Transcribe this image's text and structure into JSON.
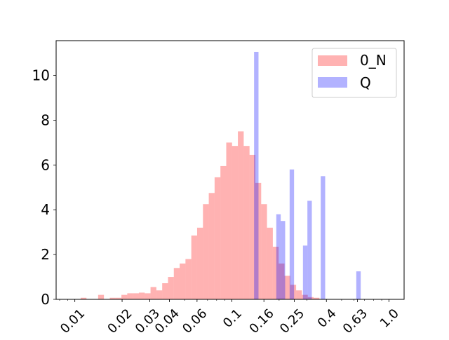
{
  "chart_data": {
    "type": "bar",
    "title": "",
    "xlabel": "",
    "ylabel": "",
    "x_scale": "log",
    "xlim": [
      0.0076,
      1.25
    ],
    "ylim": [
      0,
      11.55
    ],
    "grid": false,
    "legend_position": "top-right",
    "x_ticks": [
      0.01,
      0.02,
      0.03,
      0.04,
      0.06,
      0.1,
      0.16,
      0.25,
      0.4,
      0.63,
      1.0
    ],
    "x_tick_labels": [
      "0.01",
      "0.02",
      "0.03",
      "0.04",
      "0.06",
      "0.1",
      "0.16",
      "0.25",
      "0.4",
      "0.63",
      "1.0"
    ],
    "y_ticks": [
      0,
      2,
      4,
      6,
      8,
      10
    ],
    "y_tick_labels": [
      "0",
      "2",
      "4",
      "6",
      "8",
      "10"
    ],
    "series": [
      {
        "name": "0_N",
        "color": "#ff0000",
        "opacity": 0.3,
        "bin_edges": [
          0.01,
          0.01089,
          0.01186,
          0.01292,
          0.01407,
          0.01532,
          0.01669,
          0.01818,
          0.0198,
          0.02156,
          0.02349,
          0.02558,
          0.02786,
          0.03034,
          0.03305,
          0.036,
          0.0392,
          0.0427,
          0.04651,
          0.05065,
          0.05517,
          0.06008,
          0.06544,
          0.07128,
          0.07763,
          0.08455,
          0.09209,
          0.1003,
          0.10924,
          0.11898,
          0.12959,
          0.14114,
          0.15373,
          0.16743,
          0.18236,
          0.19862,
          0.21633,
          0.23562,
          0.25663,
          0.27951,
          0.30443,
          0.33157,
          0.36113,
          0.39333,
          0.4284,
          0.4666,
          0.5082,
          0.55351,
          0.60286,
          0.65661,
          0.71516,
          0.77892,
          0.84837,
          0.92401,
          1.0
        ],
        "values": [
          0,
          0.07,
          0,
          0,
          0.2,
          0,
          0.07,
          0.07,
          0.2,
          0.27,
          0.27,
          0.3,
          0.27,
          0.55,
          0.4,
          0.72,
          1.0,
          1.4,
          1.6,
          1.8,
          2.85,
          3.2,
          4.25,
          4.75,
          5.45,
          5.95,
          7.0,
          6.85,
          7.5,
          6.85,
          6.45,
          5.2,
          4.25,
          3.2,
          2.35,
          1.6,
          1.05,
          0.65,
          0.4,
          0.2,
          0.1,
          0.07,
          0,
          0,
          0,
          0,
          0,
          0,
          0,
          0,
          0,
          0,
          0,
          0
        ]
      },
      {
        "name": "Q",
        "color": "#0000ff",
        "opacity": 0.3,
        "bin_edges": [
          0.1,
          0.1067,
          0.1139,
          0.1216,
          0.1297,
          0.1385,
          0.1478,
          0.1578,
          0.1684,
          0.1797,
          0.1918,
          0.2047,
          0.2185,
          0.2333,
          0.249,
          0.2657,
          0.2836,
          0.3027,
          0.3231,
          0.3449,
          0.3681,
          0.3929,
          0.4193,
          0.4476,
          0.4777,
          0.5099,
          0.5442,
          0.5808,
          0.6199,
          0.6617,
          0.7063
        ],
        "values": [
          0,
          0,
          0,
          0,
          0,
          11.05,
          0,
          0,
          0,
          0,
          3.8,
          3.5,
          0,
          5.8,
          0,
          0,
          2.4,
          4.4,
          0,
          0,
          5.5,
          0,
          0,
          0,
          0,
          0,
          0,
          0,
          1.25,
          0
        ]
      }
    ]
  }
}
